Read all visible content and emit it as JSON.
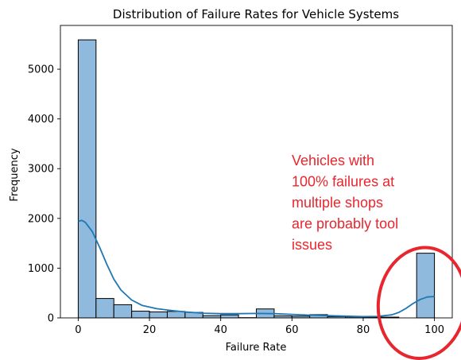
{
  "chart_data": {
    "type": "bar",
    "title": "Distribution of Failure Rates for Vehicle Systems",
    "xlabel": "Failure Rate",
    "ylabel": "Frequency",
    "xlim": [
      -5,
      105
    ],
    "ylim": [
      0,
      5880
    ],
    "xticks": [
      0,
      20,
      40,
      60,
      80,
      100
    ],
    "yticks": [
      0,
      1000,
      2000,
      3000,
      4000,
      5000
    ],
    "bin_edges": [
      0,
      5,
      10,
      15,
      20,
      25,
      30,
      35,
      40,
      45,
      50,
      55,
      60,
      65,
      70,
      75,
      80,
      85,
      90,
      95,
      100
    ],
    "values": [
      5590,
      390,
      265,
      135,
      120,
      130,
      110,
      45,
      60,
      5,
      180,
      40,
      35,
      65,
      25,
      20,
      15,
      15,
      0,
      1300
    ],
    "kde": {
      "x": [
        0,
        1,
        2,
        4,
        6,
        8,
        10,
        12,
        15,
        18,
        22,
        26,
        30,
        35,
        40,
        45,
        50,
        55,
        60,
        65,
        70,
        75,
        80,
        84,
        88,
        90,
        92,
        94,
        96,
        98,
        100
      ],
      "y": [
        1940,
        1960,
        1920,
        1730,
        1420,
        1080,
        780,
        560,
        360,
        250,
        185,
        150,
        120,
        95,
        85,
        85,
        90,
        85,
        70,
        55,
        45,
        35,
        25,
        30,
        60,
        110,
        190,
        290,
        370,
        420,
        430
      ]
    },
    "bar_color": "#8fbadd",
    "bar_edge": "#000000",
    "kde_color": "#1f77b4",
    "annotation": {
      "lines": [
        "Vehicles with",
        "100% failures at",
        "multiple shops",
        "are probably tool",
        "issues"
      ],
      "color": "#e8262e"
    },
    "highlight": {
      "x_center": 97,
      "y_center": 300,
      "color": "#e8262e"
    }
  }
}
